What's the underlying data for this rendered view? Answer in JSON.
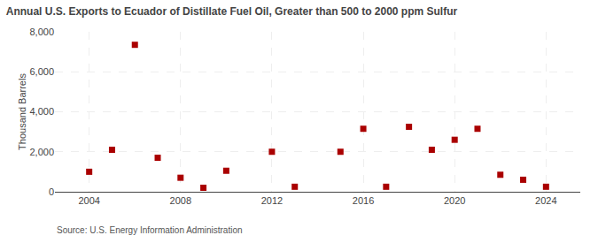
{
  "chart_data": {
    "type": "scatter",
    "title": "Annual U.S. Exports to Ecuador of Distillate Fuel Oil, Greater than 500 to 2000 ppm Sulfur",
    "y_label": "Thousand Barrels",
    "annotations": [
      "Source: U.S. Energy Information Administration"
    ],
    "x": [
      2004,
      2005,
      2006,
      2007,
      2008,
      2009,
      2010,
      2012,
      2013,
      2015,
      2016,
      2017,
      2018,
      2019,
      2020,
      2021,
      2022,
      2023,
      2024
    ],
    "values": [
      1000,
      2100,
      7350,
      1700,
      700,
      200,
      1050,
      2000,
      250,
      2000,
      3150,
      250,
      3250,
      2100,
      2600,
      3150,
      850,
      600,
      250
    ],
    "color": "#AA0000",
    "marker": "square",
    "xlim": [
      2002.5,
      2025.5
    ],
    "xticks": [
      2004,
      2008,
      2012,
      2016,
      2020,
      2024
    ],
    "ylim": [
      0,
      8000
    ],
    "yticks": [
      0,
      {
        "value": 2000,
        "label": "2,000"
      },
      {
        "value": 4000,
        "label": "4,000"
      },
      {
        "value": 6000,
        "label": "6,000"
      },
      {
        "value": 8000,
        "label": "8,000"
      }
    ],
    "grid": true
  }
}
